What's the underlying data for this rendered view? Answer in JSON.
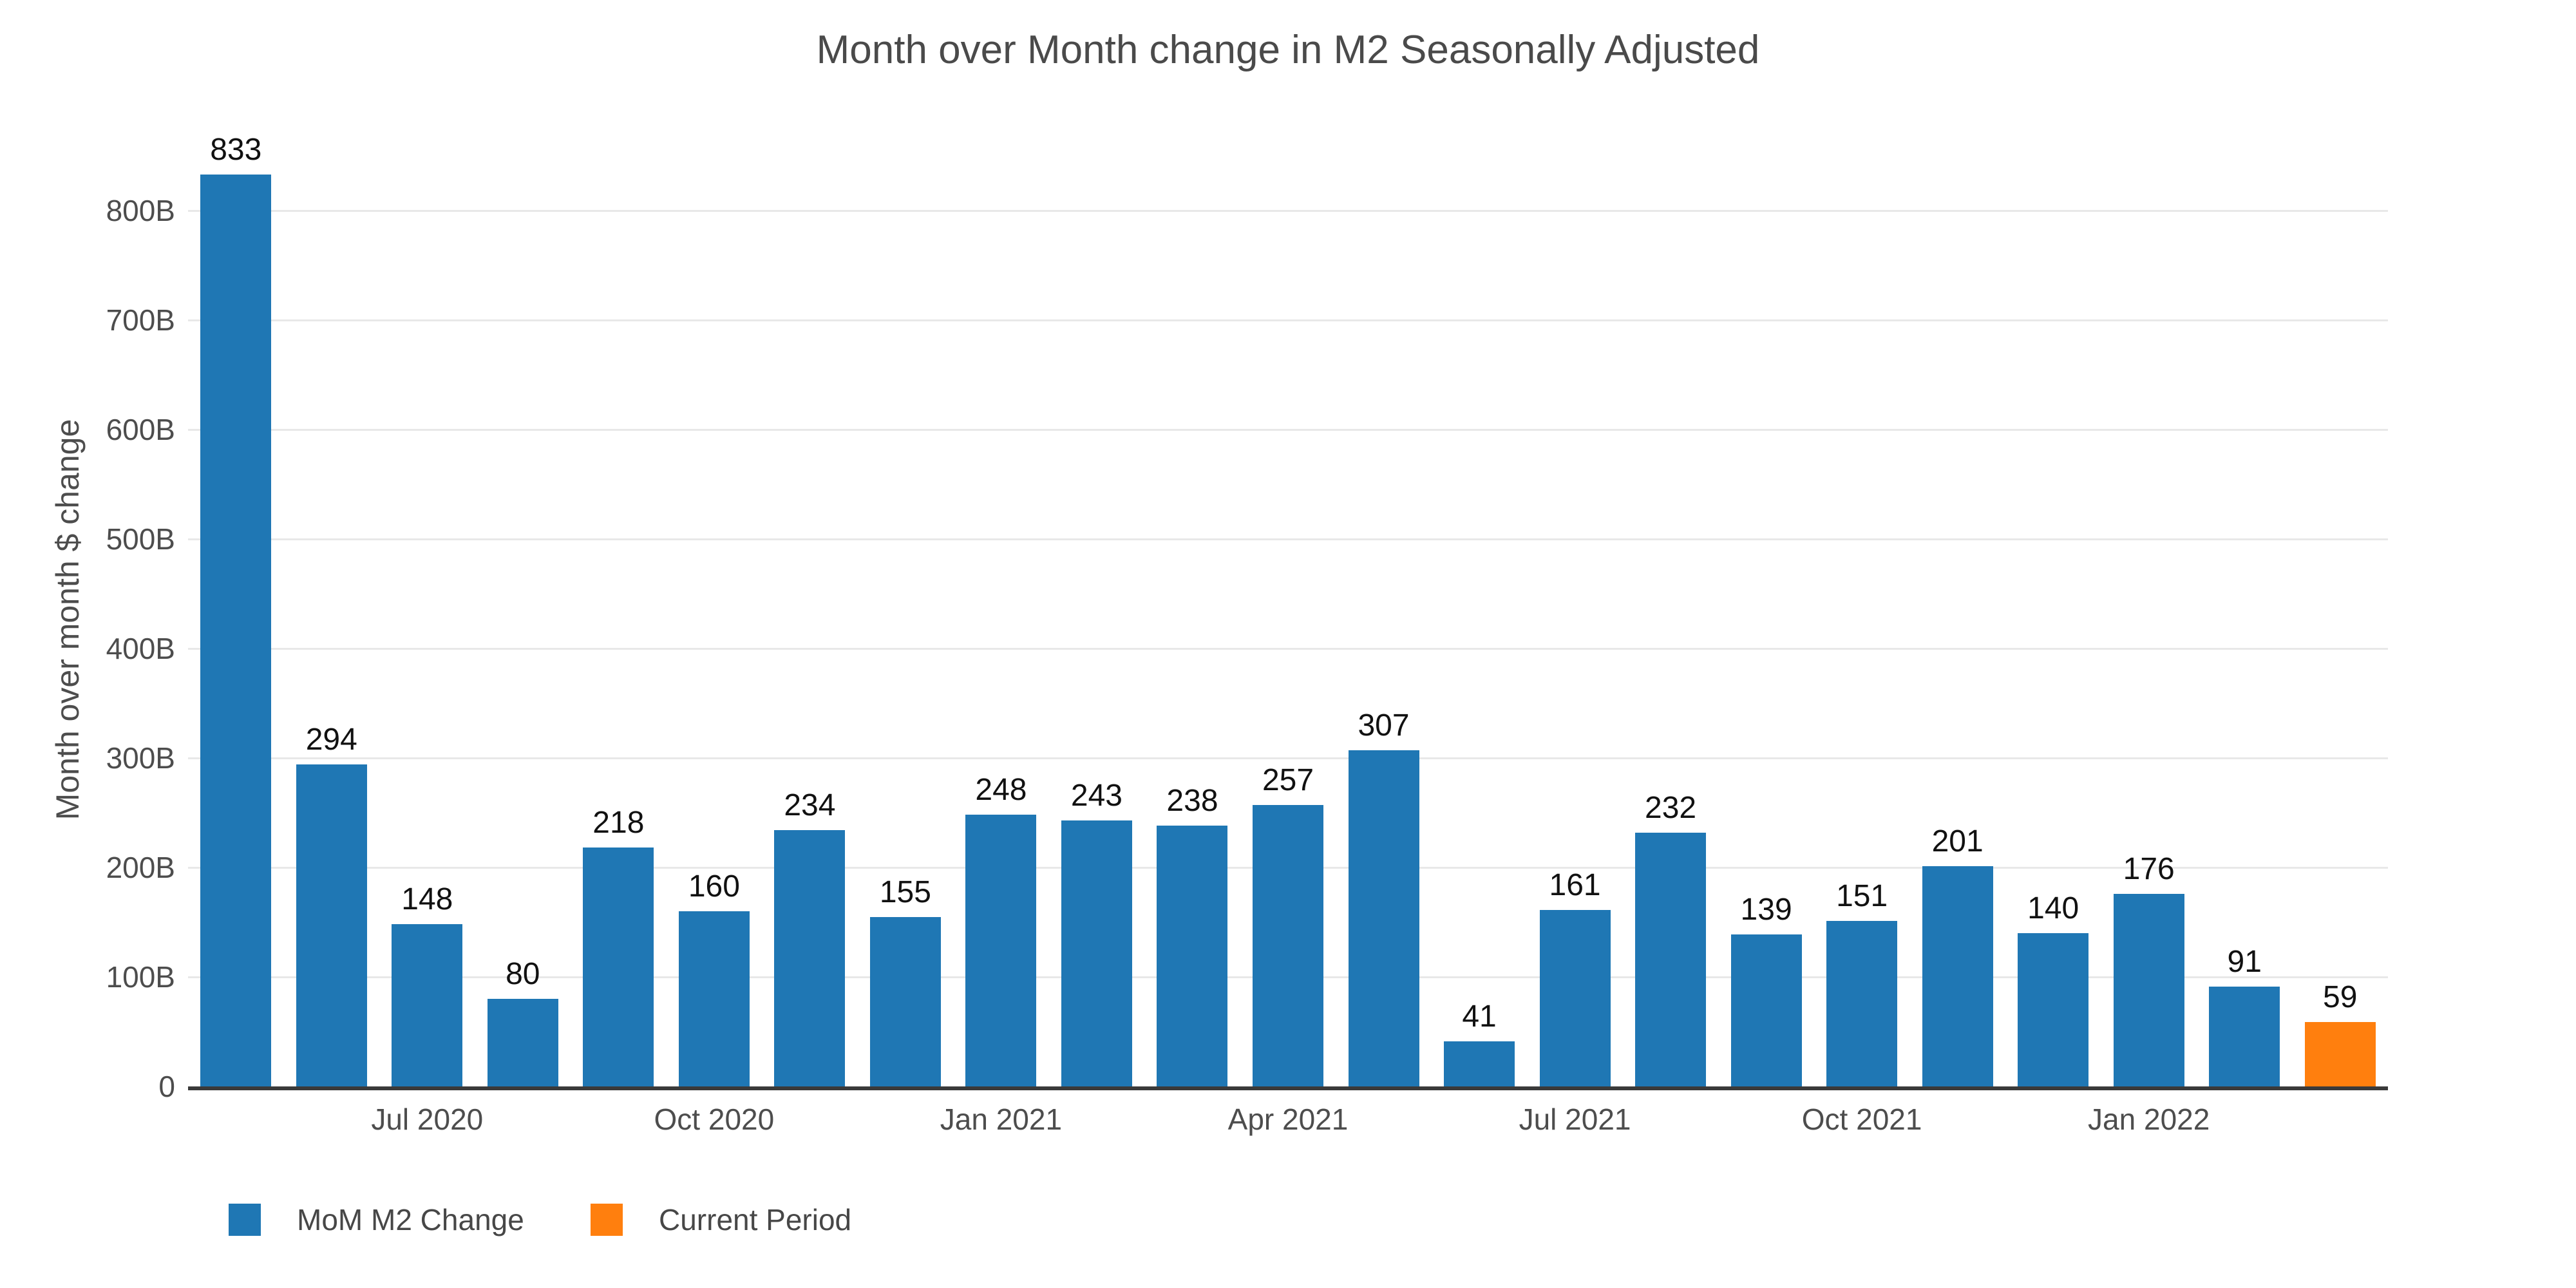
{
  "chart_data": {
    "type": "bar",
    "title": "Month over Month change in M2 Seasonally Adjusted",
    "ylabel": "Month over month $ change",
    "xlabel": "",
    "values": [
      833,
      294,
      148,
      80,
      218,
      160,
      234,
      155,
      248,
      243,
      238,
      257,
      307,
      41,
      161,
      232,
      139,
      151,
      201,
      140,
      176,
      91,
      59
    ],
    "highlight_index": 22,
    "ylim": [
      0,
      845
    ],
    "grid": "horizontal-only",
    "y_axis": {
      "ticks": [
        {
          "value": 0,
          "label": "0"
        },
        {
          "value": 100,
          "label": "100B"
        },
        {
          "value": 200,
          "label": "200B"
        },
        {
          "value": 300,
          "label": "300B"
        },
        {
          "value": 400,
          "label": "400B"
        },
        {
          "value": 500,
          "label": "500B"
        },
        {
          "value": 600,
          "label": "600B"
        },
        {
          "value": 700,
          "label": "700B"
        },
        {
          "value": 800,
          "label": "800B"
        }
      ]
    },
    "x_axis": {
      "ticks": [
        {
          "index": 2,
          "label": "Jul 2020"
        },
        {
          "index": 5,
          "label": "Oct 2020"
        },
        {
          "index": 8,
          "label": "Jan 2021"
        },
        {
          "index": 11,
          "label": "Apr 2021"
        },
        {
          "index": 14,
          "label": "Jul 2021"
        },
        {
          "index": 17,
          "label": "Oct 2021"
        },
        {
          "index": 20,
          "label": "Jan 2022"
        }
      ]
    },
    "legend": [
      {
        "label": "MoM M2 Change",
        "color": "#1f77b4"
      },
      {
        "label": "Current Period",
        "color": "#ff7f0e"
      }
    ],
    "legend_position": "bottom-left",
    "colors": {
      "bar_blue": "#1f77b4",
      "bar_orange": "#ff7f0e",
      "gridline": "#e8e8e8",
      "axis_line": "#3a3a3a",
      "tick_text": "#4d4d4d",
      "value_label_text": "#111111",
      "title_text": "#4a4a4a",
      "background": "#ffffff"
    }
  }
}
